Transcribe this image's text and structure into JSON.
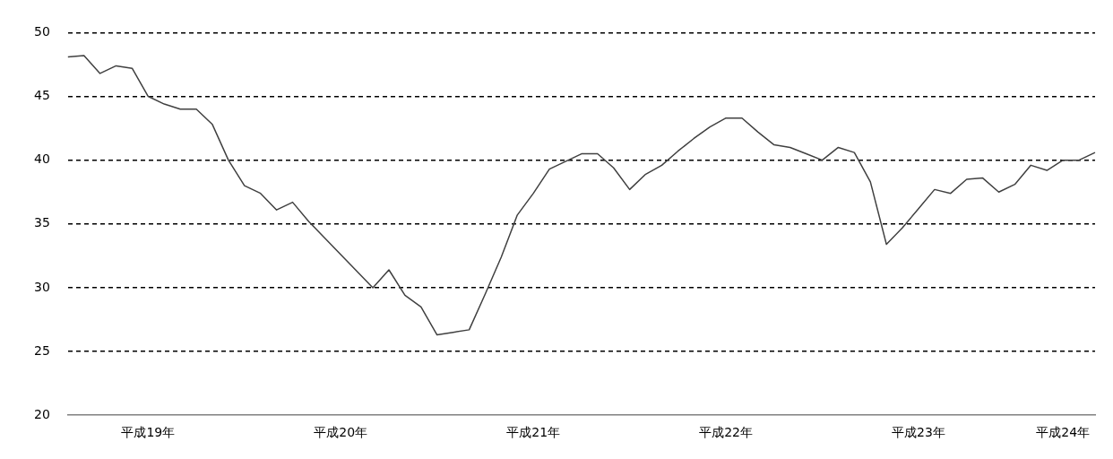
{
  "chart_data": {
    "type": "line",
    "categories": [
      null,
      null,
      null,
      null,
      null,
      "平成19年",
      null,
      null,
      null,
      null,
      null,
      null,
      null,
      null,
      null,
      null,
      null,
      "平成20年",
      null,
      null,
      null,
      null,
      null,
      null,
      null,
      null,
      null,
      null,
      null,
      "平成21年",
      null,
      null,
      null,
      null,
      null,
      null,
      null,
      null,
      null,
      null,
      null,
      "平成22年",
      null,
      null,
      null,
      null,
      null,
      null,
      null,
      null,
      null,
      null,
      null,
      "平成23年",
      null,
      null,
      null,
      null,
      null,
      null,
      null,
      null,
      "平成24年",
      null,
      null
    ],
    "series": [
      {
        "color": "#404040",
        "values": [
          48.1,
          48.2,
          46.8,
          47.4,
          47.2,
          45.0,
          44.4,
          44.0,
          44.0,
          42.8,
          40.0,
          38.0,
          37.4,
          36.1,
          36.7,
          35.2,
          33.9,
          32.6,
          31.3,
          30.0,
          31.4,
          29.4,
          28.5,
          26.3,
          26.5,
          26.7,
          29.5,
          32.4,
          35.7,
          37.4,
          39.3,
          39.9,
          40.5,
          40.5,
          39.4,
          37.7,
          38.9,
          39.6,
          40.7,
          41.7,
          42.6,
          43.3,
          43.3,
          42.2,
          41.2,
          41.0,
          40.5,
          40.0,
          41.0,
          40.6,
          38.3,
          33.4,
          34.7,
          36.2,
          37.7,
          37.4,
          38.5,
          38.6,
          37.5,
          38.1,
          39.6,
          39.2,
          40.0,
          40.0,
          40.6
        ]
      }
    ],
    "ylim": [
      20,
      50
    ],
    "yticks": [
      20,
      25,
      30,
      35,
      40,
      45,
      50
    ],
    "grid": "y",
    "legend": false,
    "marker": "none",
    "line_style": "solid"
  }
}
